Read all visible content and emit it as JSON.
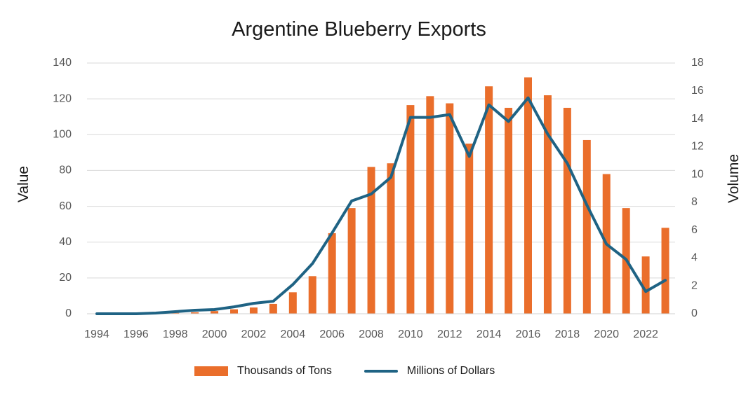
{
  "chart_data": {
    "type": "bar",
    "title": "Argentine Blueberry Exports",
    "ylabel": "Value",
    "y2label": "Volume",
    "ylim": [
      0,
      140
    ],
    "y2lim": [
      0,
      18
    ],
    "yticks": [
      0,
      20,
      40,
      60,
      80,
      100,
      120,
      140
    ],
    "y2ticks": [
      0,
      2,
      4,
      6,
      8,
      10,
      12,
      14,
      16,
      18
    ],
    "xtick_labels": [
      "1994",
      "1996",
      "1998",
      "2000",
      "2002",
      "2004",
      "2006",
      "2008",
      "2010",
      "2012",
      "2014",
      "2016",
      "2018",
      "2020",
      "2022"
    ],
    "grid": true,
    "legend_position": "bottom",
    "categories": [
      "1994",
      "1995",
      "1996",
      "1997",
      "1998",
      "1999",
      "2000",
      "2001",
      "2002",
      "2003",
      "2004",
      "2005",
      "2006",
      "2007",
      "2008",
      "2009",
      "2010",
      "2011",
      "2012",
      "2013",
      "2014",
      "2015",
      "2016",
      "2017",
      "2018",
      "2019",
      "2020",
      "2021",
      "2022",
      "2023"
    ],
    "series": [
      {
        "name": "Thousands of Tons",
        "type": "bar",
        "axis": "left",
        "color": "#ea6e2b",
        "values": [
          0,
          0,
          0,
          0.3,
          0.5,
          0.8,
          1.5,
          2.5,
          3.5,
          5.5,
          12,
          21,
          45,
          59,
          82,
          84,
          116.5,
          121.5,
          117.5,
          95,
          127,
          115,
          132,
          122,
          115,
          97,
          78,
          59,
          32,
          48
        ]
      },
      {
        "name": "Millions of Dollars",
        "type": "line",
        "axis": "right",
        "color": "#1f6384",
        "values": [
          0,
          0,
          0,
          0.05,
          0.15,
          0.25,
          0.3,
          0.5,
          0.75,
          0.9,
          2.1,
          3.6,
          5.8,
          8.1,
          8.6,
          9.8,
          14.1,
          14.1,
          14.3,
          11.3,
          15.0,
          13.8,
          15.5,
          12.9,
          10.8,
          7.8,
          5.0,
          3.9,
          1.6,
          2.4
        ]
      }
    ]
  }
}
